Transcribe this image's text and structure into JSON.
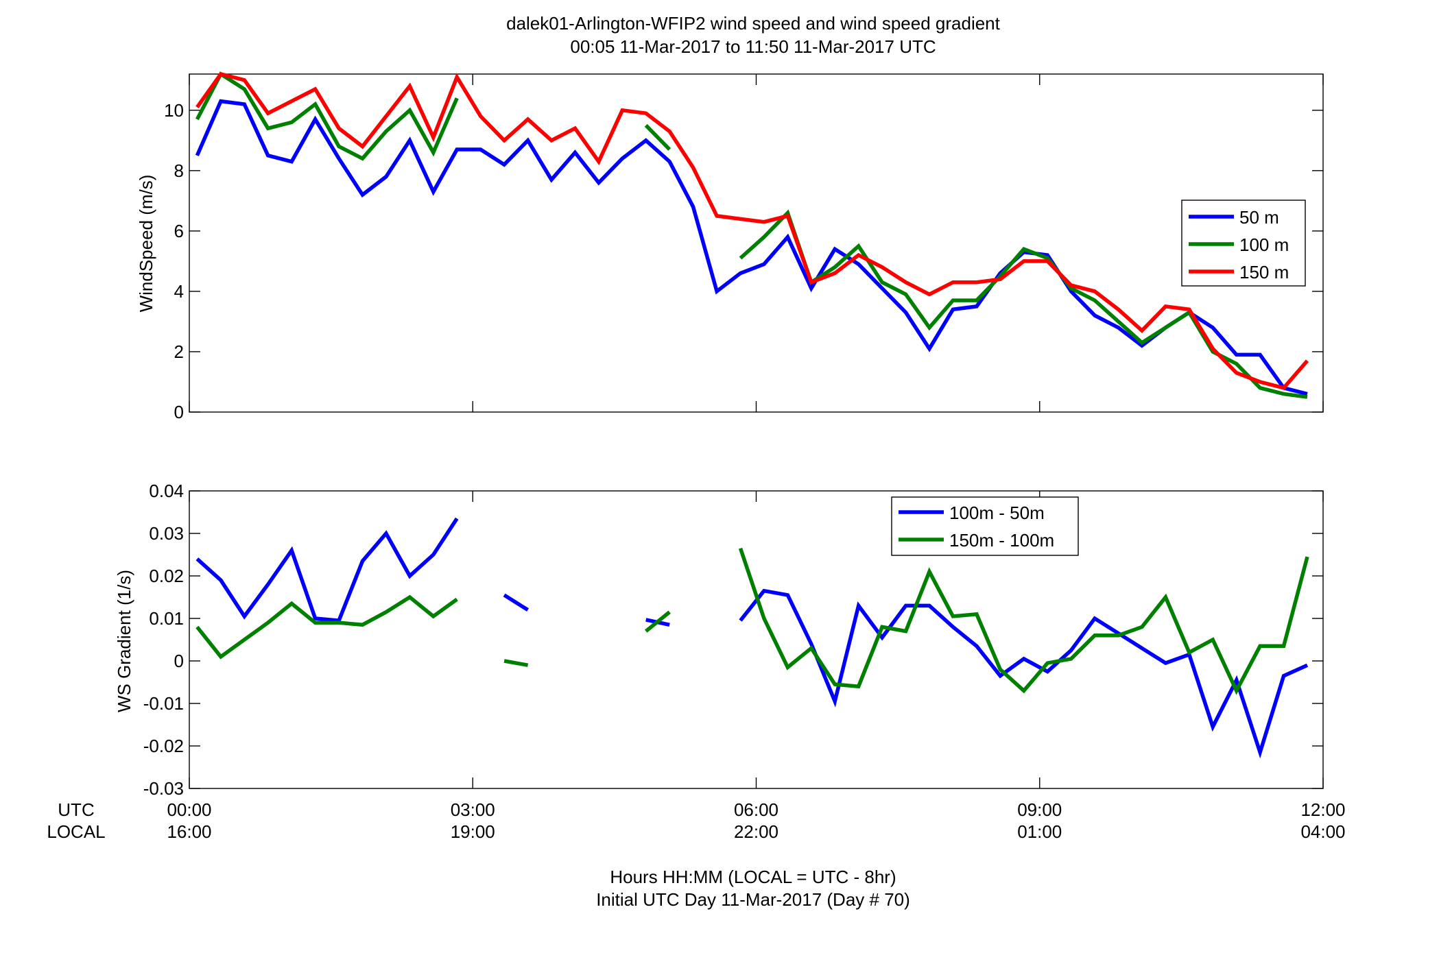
{
  "title_line1": "dalek01-Arlington-WFIP2  wind speed and wind speed gradient",
  "title_line2": "00:05 11-Mar-2017 to 11:50 11-Mar-2017  UTC",
  "xlabel_line1": "Hours HH:MM  (LOCAL = UTC - 8hr)",
  "xlabel_line2": "Initial UTC Day 11-Mar-2017 (Day # 70)",
  "row_label_utc": "UTC",
  "row_label_local": "LOCAL",
  "x_ticks": [
    {
      "hours": 0,
      "utc": "00:00",
      "local": "16:00"
    },
    {
      "hours": 3,
      "utc": "03:00",
      "local": "19:00"
    },
    {
      "hours": 6,
      "utc": "06:00",
      "local": "22:00"
    },
    {
      "hours": 9,
      "utc": "09:00",
      "local": "01:00"
    },
    {
      "hours": 12,
      "utc": "12:00",
      "local": "04:00"
    }
  ],
  "colors": {
    "blue": "#0000ff",
    "green": "#008000",
    "red": "#ff0000"
  },
  "chart_data": [
    {
      "type": "line",
      "ylabel": "WindSpeed (m/s)",
      "xlim": [
        0,
        12
      ],
      "ylim": [
        0,
        11.2
      ],
      "y_ticks": [
        0,
        2,
        4,
        6,
        8,
        10
      ],
      "grid": false,
      "legend_position": "right",
      "x_hours": [
        0.083,
        0.333,
        0.583,
        0.833,
        1.083,
        1.333,
        1.583,
        1.833,
        2.083,
        2.333,
        2.583,
        2.833,
        3.083,
        3.333,
        3.583,
        3.833,
        4.083,
        4.333,
        4.583,
        4.833,
        5.083,
        5.333,
        5.583,
        5.833,
        6.083,
        6.333,
        6.583,
        6.833,
        7.083,
        7.333,
        7.583,
        7.833,
        8.083,
        8.333,
        8.583,
        8.833,
        9.083,
        9.333,
        9.583,
        9.833,
        10.083,
        10.333,
        10.583,
        10.833,
        11.083,
        11.333,
        11.583,
        11.833
      ],
      "series": [
        {
          "name": "50 m",
          "color": "#0000ff",
          "values": [
            8.5,
            10.3,
            10.2,
            8.5,
            8.3,
            9.7,
            8.4,
            7.2,
            7.8,
            9.0,
            7.3,
            8.7,
            8.7,
            8.2,
            9.0,
            7.7,
            8.6,
            7.6,
            8.4,
            9.0,
            8.3,
            6.8,
            4.0,
            4.6,
            4.9,
            5.8,
            4.1,
            5.4,
            4.9,
            4.1,
            3.3,
            2.1,
            3.4,
            3.5,
            4.6,
            5.3,
            5.2,
            4.0,
            3.2,
            2.8,
            2.2,
            2.8,
            3.3,
            2.8,
            1.9,
            1.9,
            0.8,
            0.6
          ]
        },
        {
          "name": "100 m",
          "color": "#008000",
          "values": [
            9.7,
            11.2,
            10.7,
            9.4,
            9.6,
            10.2,
            8.8,
            8.4,
            9.3,
            10.0,
            8.6,
            10.4,
            null,
            null,
            null,
            null,
            null,
            null,
            null,
            9.5,
            8.7,
            null,
            null,
            5.1,
            5.8,
            6.6,
            4.3,
            4.8,
            5.5,
            4.3,
            3.9,
            2.8,
            3.7,
            3.7,
            4.5,
            5.4,
            5.1,
            4.1,
            3.7,
            3.0,
            2.3,
            2.8,
            3.3,
            2.0,
            1.6,
            0.8,
            0.6,
            0.5
          ]
        },
        {
          "name": "150 m",
          "color": "#ff0000",
          "values": [
            10.1,
            11.2,
            11.0,
            9.9,
            10.3,
            10.7,
            9.4,
            8.8,
            9.8,
            10.8,
            9.1,
            11.1,
            9.8,
            9.0,
            9.7,
            9.0,
            9.4,
            8.3,
            10.0,
            9.9,
            9.3,
            8.1,
            6.5,
            6.4,
            6.3,
            6.5,
            4.3,
            4.6,
            5.2,
            4.8,
            4.3,
            3.9,
            4.3,
            4.3,
            4.4,
            5.0,
            5.0,
            4.2,
            4.0,
            3.4,
            2.7,
            3.5,
            3.4,
            2.1,
            1.3,
            1.0,
            0.8,
            1.7
          ]
        }
      ]
    },
    {
      "type": "line",
      "ylabel": "WS Gradient (1/s)",
      "xlim": [
        0,
        12
      ],
      "ylim": [
        -0.03,
        0.04
      ],
      "y_ticks": [
        -0.03,
        -0.02,
        -0.01,
        0,
        0.01,
        0.02,
        0.03,
        0.04
      ],
      "y_tick_labels": [
        "-0.03",
        "-0.02",
        "-0.01",
        "0",
        "0.01",
        "0.02",
        "0.03",
        "0.04"
      ],
      "grid": false,
      "legend_position": "top-right",
      "x_hours": [
        0.083,
        0.333,
        0.583,
        0.833,
        1.083,
        1.333,
        1.583,
        1.833,
        2.083,
        2.333,
        2.583,
        2.833,
        3.083,
        3.333,
        3.583,
        3.833,
        4.083,
        4.333,
        4.583,
        4.833,
        5.083,
        5.333,
        5.583,
        5.833,
        6.083,
        6.333,
        6.583,
        6.833,
        7.083,
        7.333,
        7.583,
        7.833,
        8.083,
        8.333,
        8.583,
        8.833,
        9.083,
        9.333,
        9.583,
        9.833,
        10.083,
        10.333,
        10.583,
        10.833,
        11.083,
        11.333,
        11.583,
        11.833
      ],
      "series": [
        {
          "name": "100m - 50m",
          "color": "#0000ff",
          "values": [
            0.024,
            0.019,
            0.0105,
            0.018,
            0.026,
            0.01,
            0.0095,
            0.0235,
            0.03,
            0.02,
            0.025,
            0.0335,
            null,
            0.0155,
            0.012,
            null,
            null,
            null,
            null,
            0.0097,
            0.0085,
            null,
            null,
            0.0095,
            0.0165,
            0.0155,
            0.004,
            -0.0095,
            0.013,
            0.0055,
            0.013,
            0.013,
            0.008,
            0.0035,
            -0.0035,
            0.0005,
            -0.0025,
            0.0025,
            0.01,
            0.0065,
            0.003,
            -0.0005,
            0.0015,
            -0.0155,
            -0.0045,
            -0.0215,
            -0.0035,
            -0.001
          ]
        },
        {
          "name": "150m - 100m",
          "color": "#008000",
          "values": [
            0.008,
            0.001,
            0.005,
            0.009,
            0.0135,
            0.009,
            0.009,
            0.0085,
            0.0115,
            0.015,
            0.0105,
            0.0145,
            null,
            0.0,
            -0.001,
            null,
            null,
            null,
            null,
            0.007,
            0.0115,
            null,
            null,
            0.0265,
            0.01,
            -0.0015,
            0.003,
            -0.0055,
            -0.006,
            0.008,
            0.007,
            0.021,
            0.0105,
            0.011,
            -0.002,
            -0.007,
            -0.0005,
            0.0005,
            0.006,
            0.006,
            0.008,
            0.015,
            0.002,
            0.005,
            -0.007,
            0.0035,
            0.0035,
            0.0245
          ]
        }
      ]
    }
  ]
}
